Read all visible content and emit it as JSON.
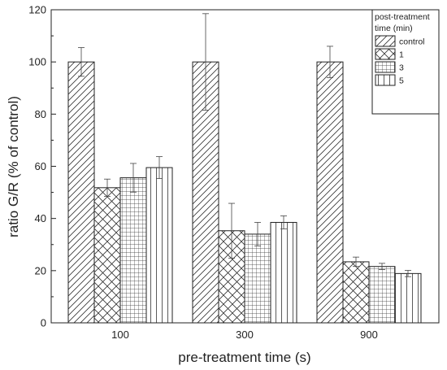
{
  "chart_data": {
    "type": "bar",
    "categories": [
      "100",
      "300",
      "900"
    ],
    "xlabel": "pre-treatment time (s)",
    "ylabel": "ratio G/R (% of control)",
    "ylim": [
      0,
      120
    ],
    "yticks": [
      0,
      20,
      40,
      60,
      80,
      100,
      120
    ],
    "grid": false,
    "legend": {
      "title_line1": "post-treatment",
      "title_line2": "time (min)",
      "placement": "top-right"
    },
    "series": [
      {
        "name": "control",
        "pattern": "diagonal",
        "values": [
          100,
          100,
          100
        ],
        "errors": [
          5.5,
          18.5,
          6
        ]
      },
      {
        "name": "1",
        "pattern": "crosshatch",
        "values": [
          51.8,
          35.3,
          23.4
        ],
        "errors": [
          3.3,
          10.5,
          1.8
        ]
      },
      {
        "name": "3",
        "pattern": "grid",
        "values": [
          55.6,
          34,
          21.6
        ],
        "errors": [
          5.5,
          4.5,
          1.2
        ]
      },
      {
        "name": "5",
        "pattern": "vertical",
        "values": [
          59.5,
          38.5,
          18.9
        ],
        "errors": [
          4.2,
          2.5,
          1.2
        ]
      }
    ]
  }
}
